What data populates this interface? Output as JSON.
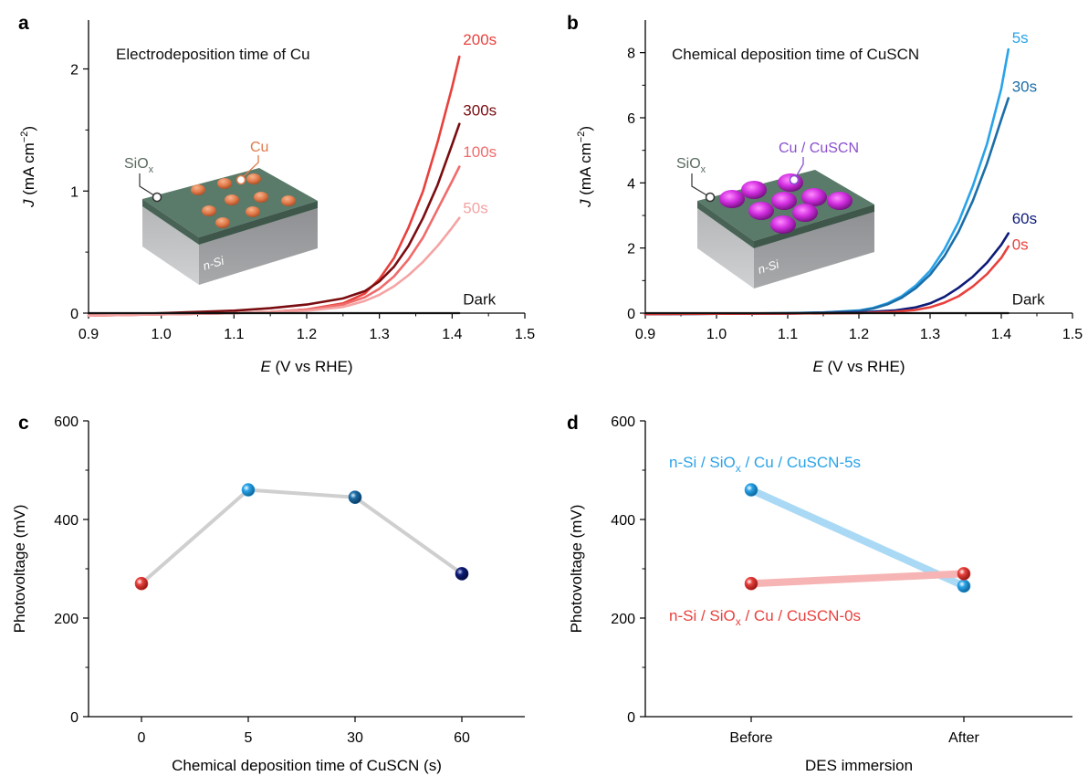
{
  "chart_data": [
    {
      "panel": "a",
      "type": "line",
      "annotation": "Electrodeposition time of Cu",
      "xlabel_italic": "E",
      "xlabel": " (V vs RHE)",
      "ylabel_italic": "J",
      "ylabel": " (mA cm",
      "ylabel_sup": "−2",
      "ylabel_close": ")",
      "xlim": [
        0.9,
        1.5
      ],
      "ylim": [
        0,
        2.4
      ],
      "xticks": [
        0.9,
        1.0,
        1.1,
        1.2,
        1.3,
        1.4,
        1.5
      ],
      "xtick_labels": [
        "0.9",
        "1.0",
        "1.1",
        "1.2",
        "1.3",
        "1.4",
        "1.5"
      ],
      "yticks": [
        0,
        1,
        2
      ],
      "ytick_labels": [
        "0",
        "1",
        "2"
      ],
      "series": [
        {
          "name": "200s",
          "color": "#e8413d",
          "x": [
            0.9,
            1.0,
            1.1,
            1.15,
            1.2,
            1.25,
            1.28,
            1.3,
            1.32,
            1.34,
            1.36,
            1.38,
            1.4,
            1.41
          ],
          "y": [
            -0.02,
            -0.01,
            0.0,
            0.01,
            0.03,
            0.08,
            0.16,
            0.28,
            0.45,
            0.7,
            1.0,
            1.4,
            1.85,
            2.1
          ]
        },
        {
          "name": "300s",
          "color": "#7a0c10",
          "x": [
            0.9,
            1.0,
            1.1,
            1.15,
            1.2,
            1.25,
            1.28,
            1.3,
            1.32,
            1.34,
            1.36,
            1.38,
            1.4,
            1.41
          ],
          "y": [
            -0.02,
            0.0,
            0.02,
            0.04,
            0.07,
            0.12,
            0.18,
            0.26,
            0.38,
            0.55,
            0.78,
            1.05,
            1.38,
            1.55
          ]
        },
        {
          "name": "100s",
          "color": "#f06b6b",
          "x": [
            0.9,
            1.0,
            1.1,
            1.15,
            1.2,
            1.25,
            1.28,
            1.3,
            1.32,
            1.34,
            1.36,
            1.38,
            1.4,
            1.41
          ],
          "y": [
            -0.02,
            -0.01,
            0.0,
            0.01,
            0.03,
            0.07,
            0.13,
            0.2,
            0.3,
            0.44,
            0.62,
            0.85,
            1.08,
            1.2
          ]
        },
        {
          "name": "50s",
          "color": "#f5a3a3",
          "x": [
            0.9,
            1.0,
            1.1,
            1.15,
            1.2,
            1.25,
            1.28,
            1.3,
            1.32,
            1.34,
            1.36,
            1.38,
            1.4,
            1.41
          ],
          "y": [
            -0.02,
            -0.01,
            0.0,
            0.01,
            0.02,
            0.05,
            0.1,
            0.15,
            0.22,
            0.31,
            0.42,
            0.55,
            0.7,
            0.78
          ]
        },
        {
          "name": "Dark",
          "color": "#111111",
          "x": [
            0.9,
            1.41
          ],
          "y": [
            0.0,
            0.0
          ]
        }
      ],
      "series_labels": [
        {
          "text": "200s",
          "color": "#e8413d",
          "x": 1.415,
          "y": 2.2
        },
        {
          "text": "300s",
          "color": "#7a0c10",
          "x": 1.415,
          "y": 1.62
        },
        {
          "text": "100s",
          "color": "#f06b6b",
          "x": 1.415,
          "y": 1.28
        },
        {
          "text": "50s",
          "color": "#f5a3a3",
          "x": 1.415,
          "y": 0.82
        },
        {
          "text": "Dark",
          "color": "#111111",
          "x": 1.415,
          "y": 0.07
        }
      ],
      "inset": {
        "oxide_label": "SiO",
        "oxide_sub": "x",
        "particle_label": "Cu",
        "substrate_label": "n-Si",
        "particle_color": "#e07a4a"
      }
    },
    {
      "panel": "b",
      "type": "line",
      "annotation": "Chemical deposition time of CuSCN",
      "xlabel_italic": "E",
      "xlabel": " (V vs RHE)",
      "ylabel_italic": "J",
      "ylabel": " (mA cm",
      "ylabel_sup": "−2",
      "ylabel_close": ")",
      "xlim": [
        0.9,
        1.5
      ],
      "ylim": [
        0,
        9
      ],
      "xticks": [
        0.9,
        1.0,
        1.1,
        1.2,
        1.3,
        1.4,
        1.5
      ],
      "xtick_labels": [
        "0.9",
        "1.0",
        "1.1",
        "1.2",
        "1.3",
        "1.4",
        "1.5"
      ],
      "yticks": [
        0,
        2,
        4,
        6,
        8
      ],
      "ytick_labels": [
        "0",
        "2",
        "4",
        "6",
        "8"
      ],
      "series": [
        {
          "name": "5s",
          "color": "#29a3e8",
          "x": [
            0.9,
            1.0,
            1.1,
            1.15,
            1.2,
            1.22,
            1.24,
            1.26,
            1.28,
            1.3,
            1.32,
            1.34,
            1.36,
            1.38,
            1.4,
            1.41
          ],
          "y": [
            -0.03,
            -0.02,
            0.0,
            0.02,
            0.08,
            0.16,
            0.3,
            0.52,
            0.85,
            1.3,
            1.95,
            2.8,
            3.9,
            5.2,
            6.9,
            8.1
          ]
        },
        {
          "name": "30s",
          "color": "#1b6ea8",
          "x": [
            0.9,
            1.0,
            1.1,
            1.15,
            1.2,
            1.22,
            1.24,
            1.26,
            1.28,
            1.3,
            1.32,
            1.34,
            1.36,
            1.38,
            1.4,
            1.41
          ],
          "y": [
            -0.03,
            -0.02,
            0.0,
            0.02,
            0.07,
            0.14,
            0.27,
            0.47,
            0.77,
            1.18,
            1.75,
            2.5,
            3.45,
            4.6,
            5.95,
            6.6
          ]
        },
        {
          "name": "60s",
          "color": "#0d1c78",
          "x": [
            0.9,
            1.0,
            1.1,
            1.2,
            1.25,
            1.28,
            1.3,
            1.32,
            1.34,
            1.36,
            1.38,
            1.4,
            1.41
          ],
          "y": [
            -0.03,
            -0.02,
            -0.01,
            0.02,
            0.08,
            0.18,
            0.3,
            0.5,
            0.78,
            1.12,
            1.55,
            2.1,
            2.45
          ]
        },
        {
          "name": "0s",
          "color": "#e8413d",
          "x": [
            0.9,
            1.0,
            1.1,
            1.2,
            1.25,
            1.28,
            1.3,
            1.32,
            1.34,
            1.36,
            1.38,
            1.4,
            1.41
          ],
          "y": [
            -0.03,
            -0.02,
            -0.01,
            0.0,
            0.04,
            0.1,
            0.18,
            0.32,
            0.52,
            0.82,
            1.2,
            1.7,
            2.05
          ]
        },
        {
          "name": "Dark",
          "color": "#111111",
          "x": [
            0.9,
            1.41
          ],
          "y": [
            0.0,
            0.0
          ]
        }
      ],
      "series_labels": [
        {
          "text": "5s",
          "color": "#29a3e8",
          "x": 1.415,
          "y": 8.3
        },
        {
          "text": "30s",
          "color": "#1b6ea8",
          "x": 1.415,
          "y": 6.8
        },
        {
          "text": "60s",
          "color": "#0d1c78",
          "x": 1.415,
          "y": 2.75
        },
        {
          "text": "0s",
          "color": "#e8413d",
          "x": 1.415,
          "y": 1.95
        },
        {
          "text": "Dark",
          "color": "#111111",
          "x": 1.415,
          "y": 0.27
        }
      ],
      "inset": {
        "oxide_label": "SiO",
        "oxide_sub": "x",
        "particle_label": "Cu / CuSCN",
        "substrate_label": "n-Si",
        "particle_color": "#c42ad8"
      }
    },
    {
      "panel": "c",
      "type": "line",
      "xlabel": "Chemical deposition time of CuSCN (s)",
      "ylabel": "Photovoltage (mV)",
      "ylim": [
        0,
        600
      ],
      "yticks": [
        0,
        200,
        400,
        600
      ],
      "ytick_labels": [
        "0",
        "200",
        "400",
        "600"
      ],
      "categories": [
        "0",
        "5",
        "30",
        "60"
      ],
      "values": [
        270,
        460,
        445,
        290
      ],
      "point_colors": [
        "#e8413d",
        "#29a3e8",
        "#1b6ea8",
        "#0d1c78"
      ],
      "line_color": "#cfcfcf"
    },
    {
      "panel": "d",
      "type": "line",
      "xlabel": "DES immersion",
      "ylabel": "Photovoltage (mV)",
      "ylim": [
        0,
        600
      ],
      "yticks": [
        0,
        200,
        400,
        600
      ],
      "ytick_labels": [
        "0",
        "200",
        "400",
        "600"
      ],
      "categories": [
        "Before",
        "After"
      ],
      "series": [
        {
          "name": "n-Si / SiO",
          "name_sub": "x",
          "name_rest": " / Cu / CuSCN-5s",
          "color": "#29a3e8",
          "line_color": "#a9d9f5",
          "values": [
            460,
            265
          ]
        },
        {
          "name": "n-Si / SiO",
          "name_sub": "x",
          "name_rest": " / Cu / CuSCN-0s",
          "color": "#e8413d",
          "line_color": "#f6b4b4",
          "values": [
            270,
            290
          ]
        }
      ]
    }
  ]
}
